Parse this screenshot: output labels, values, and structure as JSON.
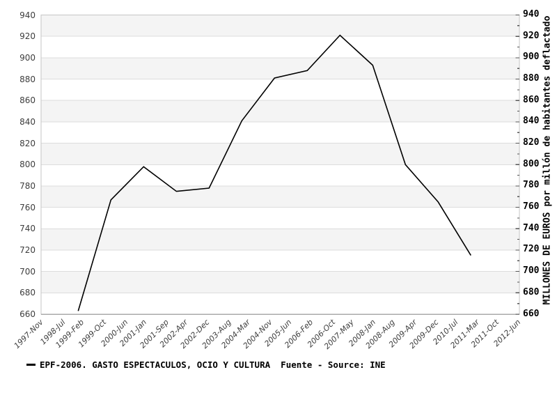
{
  "chart_data": {
    "type": "line",
    "title": "",
    "x_axis": {
      "start": "1997-Nov",
      "end": "2012-Jun",
      "tick_labels": [
        "1997-Nov",
        "1998-Jul",
        "1999-Feb",
        "1999-Oct",
        "2000-Jun",
        "2001-Jan",
        "2001-Sep",
        "2002-Apr",
        "2002-Dec",
        "2003-Aug",
        "2004-Mar",
        "2004-Nov",
        "2005-Jun",
        "2006-Feb",
        "2006-Oct",
        "2007-May",
        "2008-Jan",
        "2008-Aug",
        "2009-Apr",
        "2009-Dec",
        "2010-Jul",
        "2011-Mar",
        "2011-Oct",
        "2012-Jun"
      ]
    },
    "y_axis": {
      "min": 660,
      "max": 940,
      "major_step": 20,
      "minor_step": 10,
      "tick_labels": [
        "940",
        "920",
        "900",
        "880",
        "860",
        "840",
        "820",
        "800",
        "780",
        "760",
        "740",
        "720",
        "700",
        "680",
        "660"
      ]
    },
    "ylabel_right": "MILLONES DE EUROS por millón de habitantes deflactado",
    "legend_label": "EPF-2006. GASTO ESPECTACULOS, OCIO Y CULTURA  Fuente - Source: INE",
    "series": [
      {
        "name": "EPF-2006. GASTO ESPECTACULOS, OCIO Y CULTURA",
        "source": "Fuente - Source: INE",
        "color": "#000000",
        "points": [
          {
            "x": "1999-Jan",
            "y": 663
          },
          {
            "x": "2000-Jan",
            "y": 767
          },
          {
            "x": "2001-Jan",
            "y": 798
          },
          {
            "x": "2002-Jan",
            "y": 775
          },
          {
            "x": "2003-Jan",
            "y": 778
          },
          {
            "x": "2004-Jan",
            "y": 841
          },
          {
            "x": "2005-Jan",
            "y": 881
          },
          {
            "x": "2006-Jan",
            "y": 888
          },
          {
            "x": "2007-Jan",
            "y": 921
          },
          {
            "x": "2008-Jan",
            "y": 893
          },
          {
            "x": "2009-Jan",
            "y": 800
          },
          {
            "x": "2010-Jan",
            "y": 765
          },
          {
            "x": "2011-Jan",
            "y": 715
          }
        ]
      }
    ],
    "colors": {
      "band": "#f4f4f4",
      "band_alt": "#ffffff",
      "gridline": "#dcdcdc",
      "plot_border": "#c6c6c6",
      "bottom_axis": "#aaaaaa",
      "right_tick": "#555555",
      "series_line": "#000000",
      "tick_text": "#3d3d3d"
    },
    "legend_position": "bottom-left",
    "grid": "horizontal-bands"
  }
}
